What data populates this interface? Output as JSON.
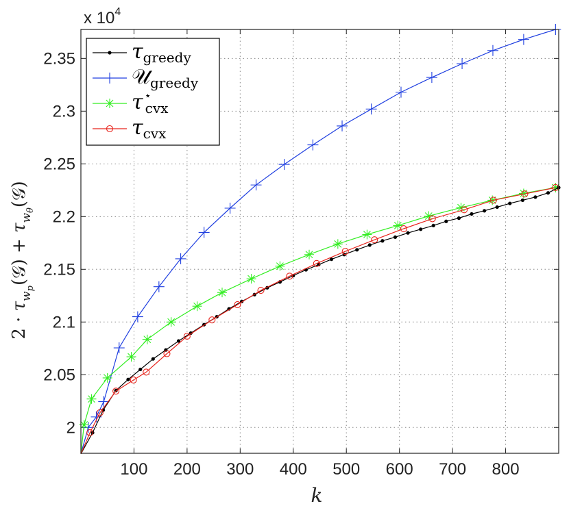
{
  "chart_data": {
    "type": "line",
    "xlabel": "k",
    "ylabel": "2 · τ_{w_p}(𝒢) + τ_{w_θ}(𝒢)",
    "y_multiplier_label": "x 10",
    "y_multiplier_exp": "4",
    "xlim": [
      0,
      900
    ],
    "ylim": [
      1.9755,
      2.3775
    ],
    "xticks": [
      100,
      200,
      300,
      400,
      500,
      600,
      700,
      800
    ],
    "xtick_labels": [
      "100",
      "200",
      "300",
      "400",
      "500",
      "600",
      "700",
      "800"
    ],
    "yticks": [
      2.0,
      2.05,
      2.1,
      2.15,
      2.2,
      2.25,
      2.3,
      2.35
    ],
    "ytick_labels": [
      "2",
      "2.05",
      "2.1",
      "2.15",
      "2.2",
      "2.25",
      "2.3",
      "2.35"
    ],
    "grid": true,
    "legend_position": "top-left",
    "series": [
      {
        "name": "τ_greedy",
        "color": "#000000",
        "marker": "dot",
        "x": [
          0,
          22,
          42,
          66,
          89,
          112,
          136,
          160,
          184,
          207,
          232,
          256,
          279,
          303,
          327,
          351,
          375,
          400,
          424,
          448,
          472,
          496,
          520,
          544,
          568,
          592,
          616,
          640,
          664,
          688,
          712,
          736,
          760,
          784,
          808,
          832,
          856,
          880,
          900
        ],
        "y": [
          1.975,
          1.995,
          2.0165,
          2.035,
          2.0455,
          2.055,
          2.065,
          2.0735,
          2.082,
          2.0895,
          2.0975,
          2.105,
          2.1125,
          2.1195,
          2.126,
          2.1325,
          2.138,
          2.144,
          2.1495,
          2.1545,
          2.1595,
          2.164,
          2.1685,
          2.173,
          2.177,
          2.1805,
          2.1845,
          2.188,
          2.1915,
          2.1955,
          2.1985,
          2.2025,
          2.2055,
          2.209,
          2.2125,
          2.2155,
          2.2185,
          2.2225,
          2.2275
        ]
      },
      {
        "name": "𝒰_greedy",
        "color": "#1f3fe0",
        "marker": "plus",
        "x": [
          0,
          14,
          29,
          43,
          72,
          107,
          147,
          188,
          232,
          281,
          330,
          383,
          437,
          492,
          547,
          603,
          661,
          718,
          776,
          834,
          894
        ],
        "y": [
          1.975,
          2.0,
          2.01,
          2.0245,
          2.0755,
          2.105,
          2.1335,
          2.16,
          2.185,
          2.208,
          2.23,
          2.2495,
          2.268,
          2.286,
          2.302,
          2.318,
          2.332,
          2.345,
          2.3575,
          2.368,
          2.3775
        ]
      },
      {
        "name": "τ*_cvx",
        "color": "#33ee22",
        "marker": "asterisk",
        "x": [
          0,
          6,
          20,
          50,
          95,
          125,
          170,
          219,
          266,
          321,
          375,
          430,
          484,
          539,
          597,
          655,
          716,
          775,
          834,
          894
        ],
        "y": [
          1.975,
          2.0025,
          2.027,
          2.047,
          2.067,
          2.0835,
          2.1,
          2.115,
          2.128,
          2.141,
          2.153,
          2.164,
          2.174,
          2.183,
          2.1915,
          2.2005,
          2.2085,
          2.2155,
          2.222,
          2.2275
        ]
      },
      {
        "name": "τ_cvx",
        "color": "#e8241c",
        "marker": "circle",
        "x": [
          0,
          17,
          36,
          66,
          99,
          123,
          162,
          200,
          247,
          295,
          339,
          393,
          444,
          498,
          553,
          608,
          662,
          722,
          777,
          836,
          894
        ],
        "y": [
          1.975,
          1.995,
          2.014,
          2.0345,
          2.045,
          2.0525,
          2.07,
          2.0865,
          2.102,
          2.1165,
          2.13,
          2.1435,
          2.1555,
          2.167,
          2.178,
          2.1885,
          2.198,
          2.2065,
          2.2155,
          2.2215,
          2.2275
        ]
      }
    ]
  }
}
